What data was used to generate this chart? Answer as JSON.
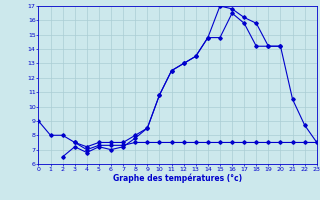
{
  "title": "Graphe des températures (°c)",
  "background_color": "#cce8ec",
  "grid_color": "#aacdd4",
  "line_color": "#0000cc",
  "x_min": 0,
  "x_max": 23,
  "y_min": 6,
  "y_max": 17,
  "line1_x": [
    0,
    1,
    2,
    3,
    4,
    5,
    6,
    7,
    8,
    9,
    10,
    11,
    12,
    13,
    14,
    15,
    16,
    17,
    18,
    19,
    20
  ],
  "line1_y": [
    9.0,
    8.0,
    8.0,
    7.5,
    7.2,
    7.5,
    7.5,
    7.5,
    8.0,
    8.5,
    10.8,
    12.5,
    13.0,
    13.5,
    14.8,
    17.0,
    16.8,
    16.2,
    15.8,
    14.2,
    14.2
  ],
  "line2_x": [
    3,
    4,
    5,
    6,
    7,
    8,
    9,
    10,
    11,
    12,
    13,
    14,
    15,
    16,
    17,
    18,
    19,
    20,
    21,
    22,
    23
  ],
  "line2_y": [
    7.5,
    7.0,
    7.3,
    7.3,
    7.3,
    7.5,
    7.5,
    7.5,
    7.5,
    7.5,
    7.5,
    7.5,
    7.5,
    7.5,
    7.5,
    7.5,
    7.5,
    7.5,
    7.5,
    7.5,
    7.5
  ],
  "line3_x": [
    2,
    3,
    4,
    5,
    6,
    7,
    8,
    9,
    10,
    11,
    12,
    13,
    14,
    15,
    16,
    17,
    18,
    19,
    20,
    21,
    22,
    23
  ],
  "line3_y": [
    6.5,
    7.2,
    6.8,
    7.2,
    7.0,
    7.2,
    7.8,
    8.5,
    10.8,
    12.5,
    13.0,
    13.5,
    14.8,
    14.8,
    16.5,
    15.8,
    14.2,
    14.2,
    14.2,
    10.5,
    8.7,
    7.5
  ]
}
